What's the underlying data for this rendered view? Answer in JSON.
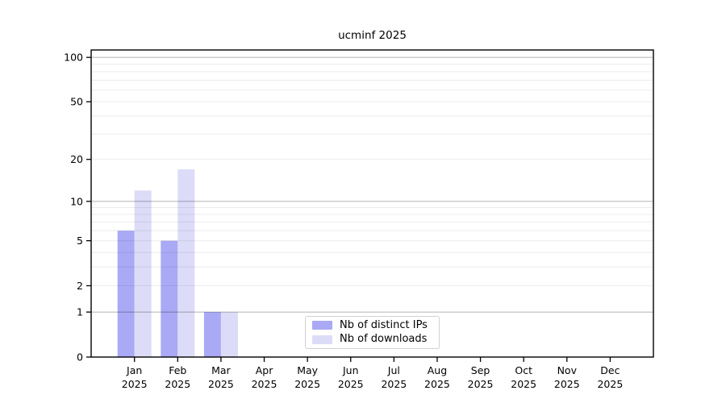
{
  "chart_data": {
    "type": "bar",
    "title": "ucminf 2025",
    "x_tick_months": [
      "Jan",
      "Feb",
      "Mar",
      "Apr",
      "May",
      "Jun",
      "Jul",
      "Aug",
      "Sep",
      "Oct",
      "Nov",
      "Dec"
    ],
    "x_tick_year": "2025",
    "series": [
      {
        "name": "Nb of distinct IPs",
        "color": "#a9a9f5",
        "values": [
          6,
          5,
          1,
          0,
          0,
          0,
          0,
          0,
          0,
          0,
          0,
          0
        ]
      },
      {
        "name": "Nb of downloads",
        "color": "#dcdcf8",
        "values": [
          12,
          17,
          1,
          0,
          0,
          0,
          0,
          0,
          0,
          0,
          0,
          0
        ]
      }
    ],
    "y_axis": {
      "scale": "log10(value+1)",
      "tick_labels": [
        0,
        1,
        2,
        5,
        10,
        20,
        50,
        100
      ],
      "major_gridlines": [
        1,
        10,
        100
      ],
      "minor_gridlines": [
        2,
        3,
        4,
        5,
        6,
        7,
        8,
        9,
        20,
        30,
        40,
        50,
        60,
        70,
        80,
        90,
        100
      ]
    },
    "legend_position": "lower center",
    "grid": true,
    "colors": {
      "axis": "#000000",
      "grid_major": "rgba(0,0,0,0.27)",
      "grid_minor": "rgba(0,0,0,0.07)",
      "background": "#ffffff",
      "text": "#000000"
    }
  }
}
